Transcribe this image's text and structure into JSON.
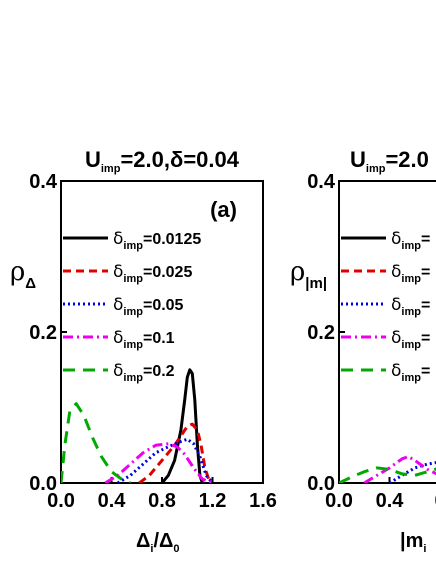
{
  "chart_data": [
    {
      "type": "line",
      "panel_label": "(a)",
      "title": {
        "main": "U",
        "sub": "imp",
        "rest": "=2.0,δ=0.04"
      },
      "ylabel": {
        "main": "ρ",
        "sub": "Δ"
      },
      "xlabel": {
        "parts": [
          "Δ",
          "i",
          "/Δ",
          "0"
        ]
      },
      "xlim": [
        0.0,
        1.6
      ],
      "ylim": [
        0.0,
        0.4
      ],
      "xticks": [
        "0.0",
        "0.4",
        "0.8",
        "1.2",
        "1.6"
      ],
      "yticks": [
        "0.0",
        "0.2",
        "0.4"
      ],
      "legend_position": "left",
      "series": [
        {
          "name": {
            "main": "δ",
            "sub": "imp",
            "rest": "=0.0125"
          },
          "color": "#000000",
          "dash": "solid",
          "x": [
            0.8,
            0.85,
            0.9,
            0.95,
            0.98,
            1.0,
            1.02,
            1.04,
            1.06,
            1.08,
            1.1,
            1.12
          ],
          "y": [
            0.0,
            0.01,
            0.03,
            0.07,
            0.11,
            0.14,
            0.15,
            0.145,
            0.11,
            0.05,
            0.01,
            0.0
          ]
        },
        {
          "name": {
            "main": "δ",
            "sub": "imp",
            "rest": "=0.025"
          },
          "color": "#e00000",
          "dash": "dash",
          "x": [
            0.62,
            0.7,
            0.8,
            0.9,
            0.96,
            1.0,
            1.04,
            1.08,
            1.11,
            1.14,
            1.18
          ],
          "y": [
            0.0,
            0.01,
            0.03,
            0.05,
            0.065,
            0.075,
            0.078,
            0.07,
            0.05,
            0.02,
            0.0
          ]
        },
        {
          "name": {
            "main": "δ",
            "sub": "imp",
            "rest": "=0.05"
          },
          "color": "#0000dd",
          "dash": "dot",
          "x": [
            0.45,
            0.55,
            0.65,
            0.75,
            0.85,
            0.95,
            1.0,
            1.05,
            1.1,
            1.15,
            1.2
          ],
          "y": [
            0.0,
            0.01,
            0.025,
            0.04,
            0.048,
            0.055,
            0.058,
            0.052,
            0.035,
            0.01,
            0.0
          ]
        },
        {
          "name": {
            "main": "δ",
            "sub": "imp",
            "rest": "=0.1"
          },
          "color": "#ee00ee",
          "dash": "dashdot",
          "x": [
            0.35,
            0.45,
            0.55,
            0.65,
            0.75,
            0.85,
            0.92,
            0.98,
            1.05,
            1.12,
            1.2
          ],
          "y": [
            0.0,
            0.01,
            0.025,
            0.04,
            0.05,
            0.052,
            0.048,
            0.038,
            0.02,
            0.005,
            0.0
          ]
        },
        {
          "name": {
            "main": "δ",
            "sub": "imp",
            "rest": "=0.2"
          },
          "color": "#00aa00",
          "dash": "longdash",
          "x": [
            0.0,
            0.03,
            0.07,
            0.12,
            0.18,
            0.25,
            0.32,
            0.4,
            0.48,
            0.55
          ],
          "y": [
            0.0,
            0.05,
            0.095,
            0.105,
            0.09,
            0.06,
            0.035,
            0.015,
            0.005,
            0.0
          ]
        }
      ]
    },
    {
      "type": "line",
      "title": {
        "main": "U",
        "sub": "imp",
        "rest": "=2.0"
      },
      "ylabel": {
        "main": "ρ",
        "sub": "|m|"
      },
      "xlabel": {
        "parts": [
          "|m",
          "i"
        ]
      },
      "xlim": [
        0.0,
        1.6
      ],
      "ylim": [
        0.0,
        0.4
      ],
      "xticks": [
        "0.0",
        "0.4",
        "0"
      ],
      "yticks": [
        "0.0",
        "0.2",
        "0.4"
      ],
      "legend_position": "left",
      "series": [
        {
          "name": {
            "main": "δ",
            "sub": "imp",
            "rest": "="
          },
          "color": "#000000",
          "dash": "solid",
          "x": [],
          "y": []
        },
        {
          "name": {
            "main": "δ",
            "sub": "imp",
            "rest": "="
          },
          "color": "#e00000",
          "dash": "dash",
          "x": [],
          "y": []
        },
        {
          "name": {
            "main": "δ",
            "sub": "imp",
            "rest": "="
          },
          "color": "#0000dd",
          "dash": "dot",
          "x": [
            0.4,
            0.5,
            0.6,
            0.7,
            0.8
          ],
          "y": [
            0.0,
            0.01,
            0.02,
            0.025,
            0.028
          ]
        },
        {
          "name": {
            "main": "δ",
            "sub": "imp",
            "rest": "="
          },
          "color": "#ee00ee",
          "dash": "dashdot",
          "x": [
            0.2,
            0.3,
            0.4,
            0.5,
            0.55,
            0.6,
            0.7,
            0.8
          ],
          "y": [
            0.0,
            0.01,
            0.02,
            0.032,
            0.035,
            0.03,
            0.018,
            0.01
          ]
        },
        {
          "name": {
            "main": "δ",
            "sub": "imp",
            "rest": "="
          },
          "color": "#00aa00",
          "dash": "longdash",
          "x": [
            0.0,
            0.1,
            0.2,
            0.3,
            0.4,
            0.5,
            0.6,
            0.7,
            0.8
          ],
          "y": [
            0.0,
            0.008,
            0.015,
            0.02,
            0.018,
            0.012,
            0.01,
            0.015,
            0.02
          ]
        }
      ]
    }
  ]
}
